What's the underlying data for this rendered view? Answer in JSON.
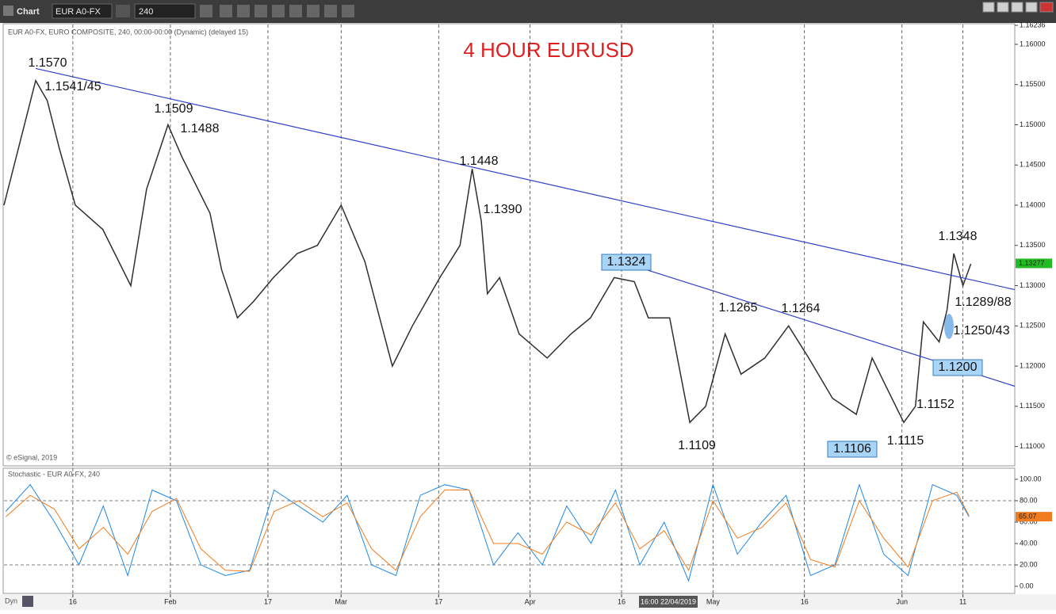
{
  "toolbar": {
    "app": "Chart",
    "symbol": "EUR A0-FX",
    "interval": "240"
  },
  "chart_data": [
    {
      "type": "line",
      "title": "4 HOUR EURUSD",
      "subtitle": "EUR A0-FX, EURO COMPOSITE, 240, 00:00-00:00 (Dynamic) (delayed 15)",
      "credit": "© eSignal, 2019",
      "crosshair_label": "16:00 22/04/2019",
      "mode_label": "Dyn",
      "x": [
        3.7,
        8.9,
        10.8,
        12.8,
        15.4,
        19.9,
        24.5,
        27.1,
        30.6,
        32.9,
        37.5,
        39.4,
        42.0,
        44.6,
        47.9,
        51.8,
        55.1,
        59.0,
        62.9,
        67.4,
        70.7,
        75.2,
        78.5,
        80.5,
        82.0,
        83.0,
        85.0,
        88.2,
        92.8,
        96.7,
        99.9,
        103.8,
        107.1,
        109.4,
        112.9,
        116.2,
        118.8,
        122.0,
        124.6,
        128.5,
        132.4,
        135.7,
        139.6,
        143.5,
        146.1,
        148.7,
        151.3,
        153.2,
        154.5,
        157.1,
        158.4,
        159.5,
        161.0,
        162.3
      ],
      "color": "#2f2f2f",
      "values": [
        1.14,
        1.1555,
        1.153,
        1.147,
        1.14,
        1.137,
        1.13,
        1.142,
        1.15,
        1.146,
        1.139,
        1.132,
        1.126,
        1.128,
        1.131,
        1.134,
        1.135,
        1.14,
        1.133,
        1.12,
        1.125,
        1.131,
        1.135,
        1.1445,
        1.138,
        1.129,
        1.131,
        1.124,
        1.121,
        1.124,
        1.126,
        1.131,
        1.1305,
        1.126,
        1.126,
        1.113,
        1.115,
        1.124,
        1.119,
        1.121,
        1.125,
        1.121,
        1.116,
        1.114,
        1.121,
        1.117,
        1.113,
        1.115,
        1.1255,
        1.123,
        1.127,
        1.134,
        1.13,
        1.1327
      ],
      "xlim": [
        3.7,
        169.5
      ],
      "xticks": [
        {
          "value": 15,
          "label": "16"
        },
        {
          "value": 31,
          "label": "Feb"
        },
        {
          "value": 47,
          "label": "17"
        },
        {
          "value": 59,
          "label": "Mar"
        },
        {
          "value": 75,
          "label": "17"
        },
        {
          "value": 90,
          "label": "Apr"
        },
        {
          "value": 105,
          "label": "16"
        },
        {
          "value": 120,
          "label": "May"
        },
        {
          "value": 135,
          "label": "16"
        },
        {
          "value": 151,
          "label": "Jun"
        },
        {
          "value": 161,
          "label": "11"
        }
      ],
      "ylim": [
        1.1076,
        1.16236
      ],
      "yticks": [
        {
          "value": 1.11,
          "label": "1.11000"
        },
        {
          "value": 1.115,
          "label": "1.11500"
        },
        {
          "value": 1.12,
          "label": "1.12000"
        },
        {
          "value": 1.125,
          "label": "1.12500"
        },
        {
          "value": 1.13,
          "label": "1.13000"
        },
        {
          "value": 1.135,
          "label": "1.13500"
        },
        {
          "value": 1.14,
          "label": "1.14000"
        },
        {
          "value": 1.145,
          "label": "1.14500"
        },
        {
          "value": 1.15,
          "label": "1.15000"
        },
        {
          "value": 1.155,
          "label": "1.15500"
        },
        {
          "value": 1.16,
          "label": "1.16000"
        },
        {
          "value": 1.16236,
          "label": "1.16236"
        }
      ],
      "last_price": {
        "value": 1.13277,
        "label": "1.13277",
        "color": "#22bb22"
      },
      "trendlines": [
        {
          "x": [
            8.9,
            169.5
          ],
          "y": [
            1.157,
            1.1295
          ],
          "color": "#3040c8"
        },
        {
          "x": [
            109.0,
            169.5
          ],
          "y": [
            1.132,
            1.1175
          ],
          "color": "#3040c8"
        }
      ],
      "annotations": [
        {
          "text": "1.1570",
          "boxed": false
        },
        {
          "text": "1.1541/45",
          "boxed": false
        },
        {
          "text": "1.1509",
          "boxed": false
        },
        {
          "text": "1.1488",
          "boxed": false
        },
        {
          "text": "1.1448",
          "boxed": false
        },
        {
          "text": "1.1390",
          "boxed": false
        },
        {
          "text": "1.1324",
          "boxed": true
        },
        {
          "text": "1.1265",
          "boxed": false
        },
        {
          "text": "1.1264",
          "boxed": false
        },
        {
          "text": "1.1348",
          "boxed": false
        },
        {
          "text": "1.1289/88",
          "boxed": false
        },
        {
          "text": "1.1250/43",
          "boxed": false
        },
        {
          "text": "1.1200",
          "boxed": true
        },
        {
          "text": "1.1152",
          "boxed": false
        },
        {
          "text": "1.1109",
          "boxed": false
        },
        {
          "text": "1.1106",
          "boxed": true
        },
        {
          "text": "1.1115",
          "boxed": false
        }
      ]
    },
    {
      "type": "line",
      "title": "Stochastic - EUR A0-FX, 240",
      "x": [
        4,
        8,
        12,
        16,
        20,
        24,
        28,
        32,
        36,
        40,
        44,
        48,
        52,
        56,
        60,
        64,
        68,
        72,
        76,
        80,
        84,
        88,
        92,
        96,
        100,
        104,
        108,
        112,
        116,
        120,
        124,
        128,
        132,
        136,
        140,
        144,
        148,
        152,
        156,
        160,
        162
      ],
      "series": [
        {
          "color": "#1e88e5",
          "values": [
            70,
            95,
            60,
            20,
            75,
            10,
            90,
            80,
            20,
            10,
            15,
            90,
            75,
            60,
            85,
            20,
            10,
            85,
            95,
            90,
            20,
            50,
            20,
            75,
            40,
            90,
            20,
            60,
            5,
            95,
            30,
            60,
            85,
            10,
            20,
            95,
            30,
            10,
            95,
            85,
            65
          ]
        },
        {
          "color": "#f07c1e",
          "values": [
            65,
            85,
            72,
            35,
            55,
            30,
            70,
            82,
            35,
            15,
            14,
            70,
            80,
            65,
            78,
            35,
            15,
            65,
            90,
            90,
            40,
            40,
            30,
            60,
            48,
            78,
            35,
            52,
            15,
            80,
            45,
            55,
            78,
            25,
            18,
            80,
            45,
            18,
            80,
            88,
            66
          ]
        }
      ],
      "xlim": [
        3.7,
        169.5
      ],
      "ylim": [
        -5.9,
        109.6
      ],
      "yticks": [
        {
          "value": 0,
          "label": "0.00"
        },
        {
          "value": 20,
          "label": "20.00"
        },
        {
          "value": 40,
          "label": "40.00"
        },
        {
          "value": 60,
          "label": "60.00"
        },
        {
          "value": 80,
          "label": "80.00"
        },
        {
          "value": 100,
          "label": "100.00"
        }
      ],
      "reference_lines": [
        80,
        20
      ],
      "last_value": {
        "value": 65.07,
        "label": "65.07",
        "color": "#f07c1e"
      }
    }
  ]
}
